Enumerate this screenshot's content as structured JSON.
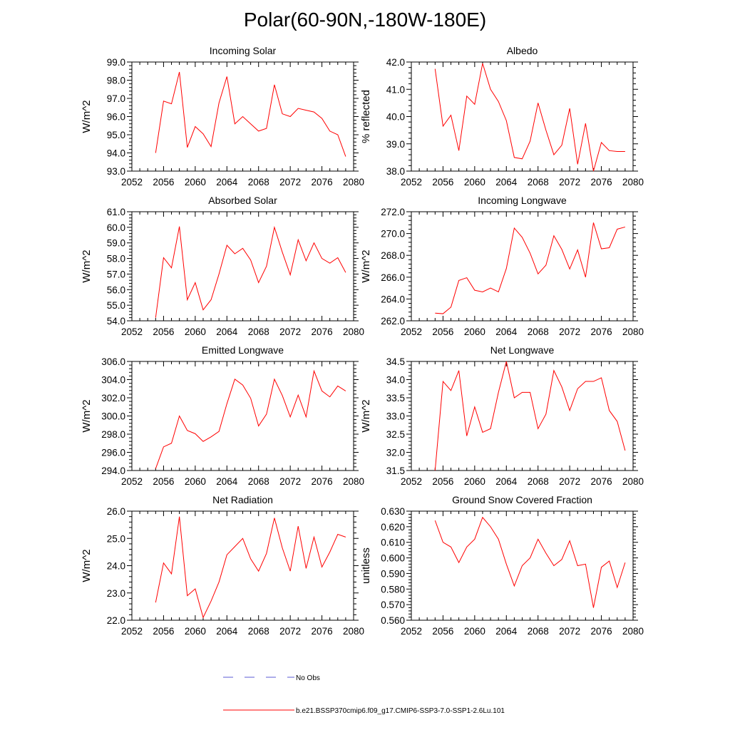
{
  "page": {
    "title": "Polar(60-90N,-180W-180E)"
  },
  "colors": {
    "model_line": "#ff0000",
    "obs_line": "#5b5bd6",
    "axis": "#000000"
  },
  "legend": {
    "obs_label": "No Obs",
    "model_label": "b.e21.BSSP370cmip6.f09_g17.CMIP6-SSP3-7.0-SSP1-2.6Lu.101"
  },
  "chart_data": [
    {
      "type": "line",
      "title": "Incoming Solar",
      "ylabel": "W/m^2",
      "xlim": [
        2052,
        2080
      ],
      "ylim": [
        93.0,
        99.0
      ],
      "xticks": [
        2052,
        2056,
        2060,
        2064,
        2068,
        2072,
        2076,
        2080
      ],
      "yticks": [
        "93.0",
        "94.0",
        "95.0",
        "96.0",
        "97.0",
        "98.0",
        "99.0"
      ],
      "x": [
        2055,
        2056,
        2057,
        2058,
        2059,
        2060,
        2061,
        2062,
        2063,
        2064,
        2065,
        2066,
        2067,
        2068,
        2069,
        2070,
        2071,
        2072,
        2073,
        2074,
        2075,
        2076,
        2077,
        2078,
        2079
      ],
      "values": [
        94.0,
        96.85,
        96.7,
        98.45,
        94.3,
        95.45,
        95.05,
        94.35,
        96.75,
        98.2,
        95.6,
        96.0,
        95.6,
        95.2,
        95.35,
        97.75,
        96.15,
        96.0,
        96.45,
        96.35,
        96.25,
        95.9,
        95.2,
        95.0,
        93.8
      ]
    },
    {
      "type": "line",
      "title": "Albedo",
      "ylabel": "% reflected",
      "xlim": [
        2052,
        2080
      ],
      "ylim": [
        38.0,
        42.0
      ],
      "xticks": [
        2052,
        2056,
        2060,
        2064,
        2068,
        2072,
        2076,
        2080
      ],
      "yticks": [
        "38.0",
        "39.0",
        "40.0",
        "41.0",
        "42.0"
      ],
      "x": [
        2055,
        2056,
        2057,
        2058,
        2059,
        2060,
        2061,
        2062,
        2063,
        2064,
        2065,
        2066,
        2067,
        2068,
        2069,
        2070,
        2071,
        2072,
        2073,
        2074,
        2075,
        2076,
        2077,
        2078,
        2079
      ],
      "values": [
        41.75,
        39.65,
        40.05,
        38.75,
        40.75,
        40.45,
        41.95,
        41.0,
        40.55,
        39.85,
        38.5,
        38.45,
        39.1,
        40.5,
        39.5,
        38.6,
        38.95,
        40.3,
        38.25,
        39.75,
        38.0,
        39.05,
        38.75,
        38.72,
        38.72
      ]
    },
    {
      "type": "line",
      "title": "Absorbed Solar",
      "ylabel": "W/m^2",
      "xlim": [
        2052,
        2080
      ],
      "ylim": [
        54.0,
        61.0
      ],
      "xticks": [
        2052,
        2056,
        2060,
        2064,
        2068,
        2072,
        2076,
        2080
      ],
      "yticks": [
        "54.0",
        "55.0",
        "56.0",
        "57.0",
        "58.0",
        "59.0",
        "60.0",
        "61.0"
      ],
      "x": [
        2055,
        2056,
        2057,
        2058,
        2059,
        2060,
        2061,
        2062,
        2063,
        2064,
        2065,
        2066,
        2067,
        2068,
        2069,
        2070,
        2071,
        2072,
        2073,
        2074,
        2075,
        2076,
        2077,
        2078,
        2079
      ],
      "values": [
        54.2,
        58.05,
        57.4,
        60.05,
        55.35,
        56.45,
        54.7,
        55.35,
        57.0,
        58.85,
        58.3,
        58.65,
        57.9,
        56.45,
        57.5,
        60.0,
        58.4,
        56.95,
        59.2,
        57.85,
        59.0,
        58.0,
        57.7,
        58.05,
        57.1
      ]
    },
    {
      "type": "line",
      "title": "Incoming Longwave",
      "ylabel": "W/m^2",
      "xlim": [
        2052,
        2080
      ],
      "ylim": [
        262.0,
        272.0
      ],
      "xticks": [
        2052,
        2056,
        2060,
        2064,
        2068,
        2072,
        2076,
        2080
      ],
      "yticks": [
        "262.0",
        "264.0",
        "266.0",
        "268.0",
        "270.0",
        "272.0"
      ],
      "x": [
        2055,
        2056,
        2057,
        2058,
        2059,
        2060,
        2061,
        2062,
        2063,
        2064,
        2065,
        2066,
        2067,
        2068,
        2069,
        2070,
        2071,
        2072,
        2073,
        2074,
        2075,
        2076,
        2077,
        2078,
        2079
      ],
      "values": [
        262.7,
        262.65,
        263.25,
        265.7,
        265.95,
        264.8,
        264.65,
        265.0,
        264.65,
        266.8,
        270.5,
        269.65,
        268.2,
        266.3,
        267.1,
        269.8,
        268.55,
        266.75,
        268.5,
        266.0,
        271.0,
        268.6,
        268.7,
        270.4,
        270.6
      ]
    },
    {
      "type": "line",
      "title": "Emitted Longwave",
      "ylabel": "W/m^2",
      "xlim": [
        2052,
        2080
      ],
      "ylim": [
        294.0,
        306.0
      ],
      "xticks": [
        2052,
        2056,
        2060,
        2064,
        2068,
        2072,
        2076,
        2080
      ],
      "yticks": [
        "294.0",
        "296.0",
        "298.0",
        "300.0",
        "302.0",
        "304.0",
        "306.0"
      ],
      "x": [
        2055,
        2056,
        2057,
        2058,
        2059,
        2060,
        2061,
        2062,
        2063,
        2064,
        2065,
        2066,
        2067,
        2068,
        2069,
        2070,
        2071,
        2072,
        2073,
        2074,
        2075,
        2076,
        2077,
        2078,
        2079
      ],
      "values": [
        294.2,
        296.6,
        297.0,
        300.0,
        298.4,
        298.05,
        297.2,
        297.7,
        298.3,
        301.35,
        304.05,
        303.4,
        301.95,
        298.9,
        300.2,
        304.05,
        302.25,
        299.9,
        302.3,
        299.9,
        304.95,
        302.75,
        302.1,
        303.3,
        302.75
      ]
    },
    {
      "type": "line",
      "title": "Net Longwave",
      "ylabel": "W/m^2",
      "xlim": [
        2052,
        2080
      ],
      "ylim": [
        31.5,
        34.5
      ],
      "xticks": [
        2052,
        2056,
        2060,
        2064,
        2068,
        2072,
        2076,
        2080
      ],
      "yticks": [
        "31.5",
        "32.0",
        "32.5",
        "33.0",
        "33.5",
        "34.0",
        "34.5"
      ],
      "x": [
        2055,
        2056,
        2057,
        2058,
        2059,
        2060,
        2061,
        2062,
        2063,
        2064,
        2065,
        2066,
        2067,
        2068,
        2069,
        2070,
        2071,
        2072,
        2073,
        2074,
        2075,
        2076,
        2077,
        2078,
        2079
      ],
      "values": [
        31.5,
        33.95,
        33.7,
        34.25,
        32.45,
        33.25,
        32.55,
        32.65,
        33.65,
        34.5,
        33.5,
        33.65,
        33.65,
        32.65,
        33.05,
        34.25,
        33.8,
        33.15,
        33.75,
        33.95,
        33.95,
        34.05,
        33.15,
        32.85,
        32.05
      ]
    },
    {
      "type": "line",
      "title": "Net Radiation",
      "ylabel": "W/m^2",
      "xlim": [
        2052,
        2080
      ],
      "ylim": [
        22.0,
        26.0
      ],
      "xticks": [
        2052,
        2056,
        2060,
        2064,
        2068,
        2072,
        2076,
        2080
      ],
      "yticks": [
        "22.0",
        "23.0",
        "24.0",
        "25.0",
        "26.0"
      ],
      "x": [
        2055,
        2056,
        2057,
        2058,
        2059,
        2060,
        2061,
        2062,
        2063,
        2064,
        2065,
        2066,
        2067,
        2068,
        2069,
        2070,
        2071,
        2072,
        2073,
        2074,
        2075,
        2076,
        2077,
        2078,
        2079
      ],
      "values": [
        22.65,
        24.1,
        23.7,
        25.8,
        22.9,
        23.15,
        22.1,
        22.7,
        23.4,
        24.4,
        24.7,
        25.0,
        24.25,
        23.8,
        24.45,
        25.75,
        24.65,
        23.8,
        25.45,
        23.9,
        25.05,
        23.95,
        24.5,
        25.15,
        25.05
      ]
    },
    {
      "type": "line",
      "title": "Ground Snow Covered Fraction",
      "ylabel": "unitless",
      "xlim": [
        2052,
        2080
      ],
      "ylim": [
        0.56,
        0.63
      ],
      "xticks": [
        2052,
        2056,
        2060,
        2064,
        2068,
        2072,
        2076,
        2080
      ],
      "yticks": [
        "0.560",
        "0.570",
        "0.580",
        "0.590",
        "0.600",
        "0.610",
        "0.620",
        "0.630"
      ],
      "x": [
        2055,
        2056,
        2057,
        2058,
        2059,
        2060,
        2061,
        2062,
        2063,
        2064,
        2065,
        2066,
        2067,
        2068,
        2069,
        2070,
        2071,
        2072,
        2073,
        2074,
        2075,
        2076,
        2077,
        2078,
        2079
      ],
      "values": [
        0.624,
        0.61,
        0.607,
        0.597,
        0.607,
        0.612,
        0.626,
        0.62,
        0.612,
        0.596,
        0.582,
        0.595,
        0.6,
        0.612,
        0.603,
        0.595,
        0.599,
        0.611,
        0.595,
        0.596,
        0.568,
        0.594,
        0.598,
        0.581,
        0.597
      ]
    }
  ]
}
